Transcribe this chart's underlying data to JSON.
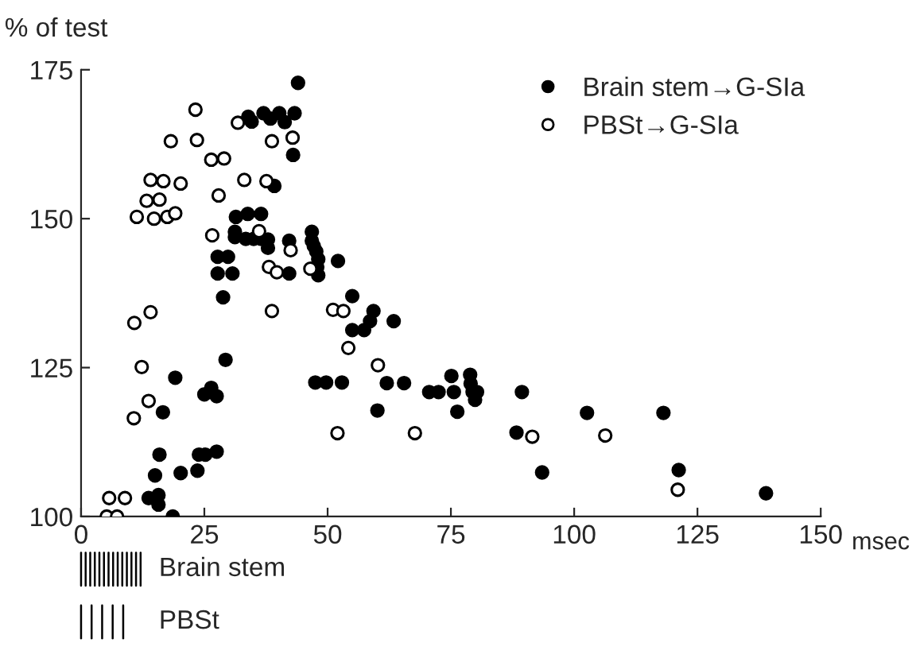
{
  "chart_data": {
    "type": "scatter",
    "ylabel": "% of test",
    "xlabel": "msec",
    "xlim": [
      0,
      150
    ],
    "xticks": [
      0,
      25,
      50,
      75,
      100,
      125,
      150
    ],
    "ylim": [
      100,
      175
    ],
    "yticks": [
      100,
      125,
      150,
      175
    ],
    "grid": false,
    "legend": "top right",
    "marker": "circle",
    "annotations": [
      "Brain stem",
      "PBSt"
    ],
    "series": [
      {
        "name": "Brain stem→G-SIa",
        "color": "#000000",
        "x": [
          18.6,
          13.7,
          15.7,
          15.7,
          15.0,
          20.2,
          23.6,
          15.9,
          23.9,
          25.2,
          27.5,
          16.6,
          19.1,
          25.0,
          26.4,
          27.5,
          29.3,
          28.8,
          27.7,
          29.8,
          27.7,
          30.7,
          31.4,
          33.8,
          36.5,
          31.2,
          31.2,
          33.4,
          35.0,
          36.5,
          37.9,
          37.9,
          39.2,
          33.9,
          34.6,
          37.0,
          38.4,
          40.2,
          41.3,
          43.3,
          43.0,
          44.0,
          42.2,
          42.2,
          46.8,
          46.8,
          47.2,
          47.7,
          48.1,
          47.9,
          48.1,
          47.5,
          49.7,
          52.9,
          52.1,
          55.0,
          59.3,
          58.6,
          57.4,
          55.0,
          63.4,
          62.0,
          65.5,
          60.1,
          70.6,
          72.5,
          75.1,
          75.6,
          76.3,
          78.9,
          79.0,
          79.4,
          79.9,
          80.3,
          89.4,
          88.3,
          102.6,
          118.1,
          93.5,
          121.2,
          138.9
        ],
        "values": [
          100.0,
          103.1,
          103.6,
          102.0,
          106.9,
          107.3,
          107.7,
          110.4,
          110.4,
          110.4,
          110.9,
          117.5,
          123.3,
          120.5,
          121.6,
          120.2,
          126.3,
          136.8,
          143.6,
          143.6,
          140.8,
          140.8,
          150.3,
          150.8,
          150.8,
          147.8,
          146.9,
          146.6,
          146.6,
          146.6,
          146.5,
          145.1,
          155.5,
          167.1,
          166.3,
          167.7,
          166.8,
          167.7,
          166.2,
          167.7,
          160.7,
          172.8,
          146.3,
          140.8,
          147.8,
          146.3,
          145.4,
          144.5,
          143.2,
          141.9,
          140.5,
          122.5,
          122.5,
          122.5,
          142.9,
          137.0,
          134.5,
          132.8,
          131.3,
          131.3,
          132.8,
          122.4,
          122.4,
          117.8,
          120.9,
          120.9,
          123.6,
          120.9,
          117.6,
          123.8,
          122.3,
          120.9,
          119.6,
          120.9,
          120.9,
          114.1,
          117.4,
          117.4,
          107.4,
          107.8,
          103.9
        ]
      },
      {
        "name": "PBSt→G-SIa",
        "color": "#ffffff",
        "x": [
          5.2,
          7.3,
          5.7,
          8.9,
          10.7,
          13.7,
          12.3,
          10.8,
          14.1,
          11.3,
          14.8,
          13.3,
          15.9,
          14.1,
          16.7,
          17.5,
          19.1,
          20.2,
          18.2,
          23.2,
          23.5,
          26.4,
          29.0,
          27.9,
          26.6,
          31.8,
          33.1,
          36.1,
          37.6,
          38.7,
          38.1,
          39.7,
          38.7,
          42.9,
          42.5,
          46.5,
          51.1,
          53.2,
          54.2,
          60.2,
          52.0,
          67.7,
          91.5,
          106.3,
          121.0
        ],
        "values": [
          100.0,
          100.0,
          103.1,
          103.1,
          116.5,
          119.4,
          125.1,
          132.5,
          134.3,
          150.3,
          150.0,
          153.0,
          153.2,
          156.5,
          156.3,
          150.3,
          150.9,
          155.9,
          163.0,
          168.3,
          163.2,
          159.9,
          160.1,
          153.9,
          147.2,
          166.1,
          156.5,
          147.9,
          156.3,
          163.0,
          141.9,
          141.0,
          134.5,
          163.6,
          144.7,
          141.6,
          134.7,
          134.5,
          128.3,
          125.4,
          114.0,
          114.0,
          113.4,
          113.6,
          104.5
        ]
      }
    ]
  }
}
